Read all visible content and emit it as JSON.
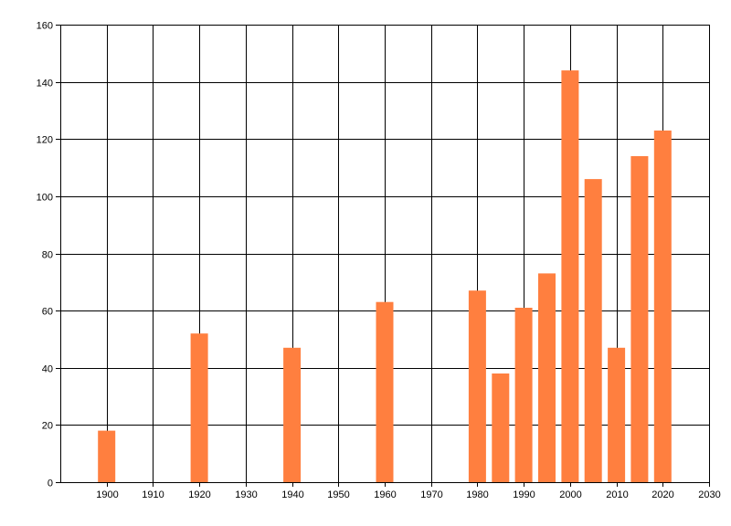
{
  "chart_data": {
    "type": "bar",
    "title": "",
    "xlabel": "",
    "ylabel": "",
    "x": [
      1900,
      1920,
      1940,
      1960,
      1980,
      1985,
      1990,
      1995,
      2000,
      2005,
      2010,
      2015,
      2020
    ],
    "values": [
      18,
      52,
      47,
      63,
      67,
      38,
      61,
      73,
      144,
      106,
      47,
      114,
      123
    ],
    "xlim": [
      1890,
      2030
    ],
    "ylim": [
      0,
      160
    ],
    "x_ticks": [
      "1900",
      "1910",
      "1920",
      "1930",
      "1940",
      "1950",
      "1960",
      "1970",
      "1980",
      "1990",
      "2000",
      "2010",
      "2020",
      "2030"
    ],
    "y_ticks": [
      "0",
      "20",
      "40",
      "60",
      "80",
      "100",
      "120",
      "140",
      "160"
    ],
    "grid": true,
    "legend": "none",
    "bar_color": "#ff7f3f",
    "grid_color": "#000000"
  }
}
